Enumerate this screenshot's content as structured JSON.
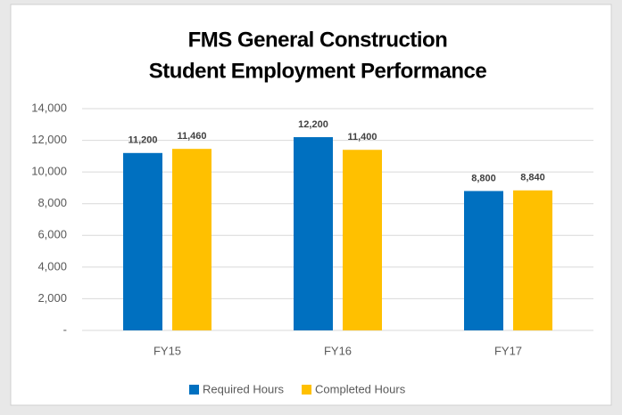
{
  "chart_data": {
    "type": "bar",
    "title": "FMS General Construction",
    "subtitle": "Student Employment Performance",
    "categories": [
      "FY15",
      "FY16",
      "FY17"
    ],
    "series": [
      {
        "name": "Required Hours",
        "color": "#0070c0",
        "values": [
          11200,
          12200,
          8800
        ],
        "value_labels": [
          "11,200",
          "12,200",
          "8,800"
        ]
      },
      {
        "name": "Completed Hours",
        "color": "#ffc000",
        "values": [
          11460,
          11400,
          8840
        ],
        "value_labels": [
          "11,460",
          "11,400",
          "8,840"
        ]
      }
    ],
    "ylim": [
      0,
      14000
    ],
    "yticks": [
      {
        "value": 0,
        "label": "-"
      },
      {
        "value": 2000,
        "label": "2,000"
      },
      {
        "value": 4000,
        "label": "4,000"
      },
      {
        "value": 6000,
        "label": "6,000"
      },
      {
        "value": 8000,
        "label": "8,000"
      },
      {
        "value": 10000,
        "label": "10,000"
      },
      {
        "value": 12000,
        "label": "12,000"
      },
      {
        "value": 14000,
        "label": "14,000"
      }
    ],
    "grid": true,
    "legend": "bottom"
  }
}
